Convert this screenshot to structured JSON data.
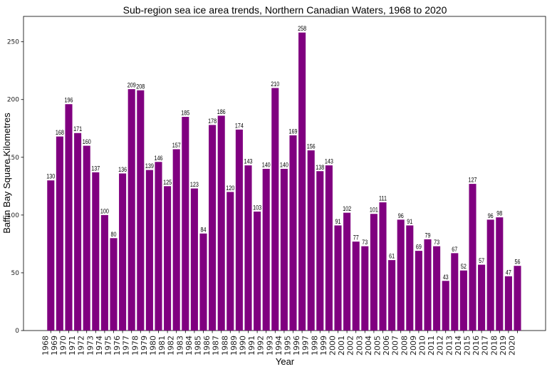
{
  "chart_data": {
    "type": "bar",
    "title": "Sub-region sea ice area trends, Northern Canadian Waters, 1968 to 2020",
    "xlabel": "Year",
    "ylabel": "Baffin Bay Square Kilometres",
    "ylim": [
      0,
      272
    ],
    "yticks": [
      0,
      50,
      100,
      150,
      200,
      250
    ],
    "bar_color": "#800080",
    "grid": false,
    "categories": [
      "1968",
      "1969",
      "1970",
      "1971",
      "1972",
      "1973",
      "1974",
      "1975",
      "1976",
      "1977",
      "1978",
      "1979",
      "1980",
      "1981",
      "1982",
      "1983",
      "1984",
      "1985",
      "1986",
      "1987",
      "1988",
      "1989",
      "1990",
      "1991",
      "1992",
      "1993",
      "1994",
      "1995",
      "1996",
      "1997",
      "1998",
      "1999",
      "2000",
      "2001",
      "2002",
      "2003",
      "2004",
      "2005",
      "2006",
      "2007",
      "2008",
      "2009",
      "2010",
      "2011",
      "2012",
      "2013",
      "2014",
      "2015",
      "2016",
      "2017",
      "2018",
      "2019",
      "2020"
    ],
    "values": [
      130,
      168,
      196,
      171,
      160,
      137,
      100,
      80,
      136,
      209,
      208,
      139,
      146,
      125,
      157,
      185,
      123,
      84,
      178,
      186,
      120,
      174,
      143,
      103,
      140,
      210,
      140,
      169,
      258,
      156,
      138,
      143,
      91,
      102,
      77,
      73,
      101,
      111,
      61,
      96,
      91,
      69,
      79,
      73,
      43,
      67,
      52,
      127,
      57,
      96,
      98,
      47,
      56
    ]
  }
}
